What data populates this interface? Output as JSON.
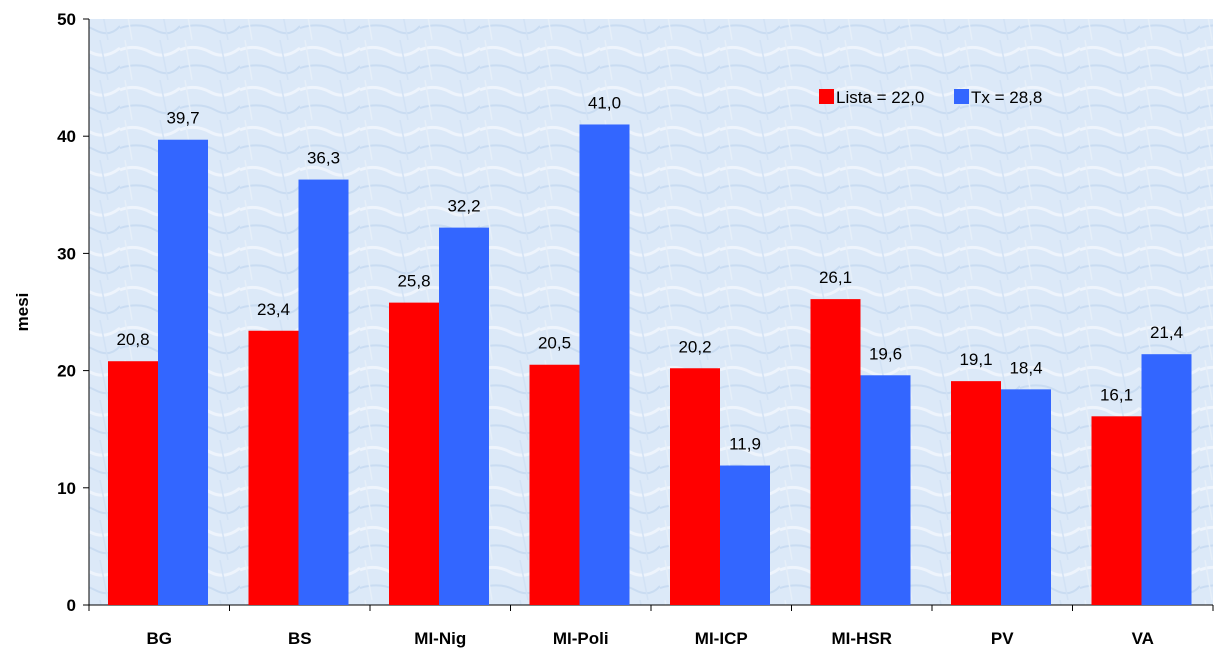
{
  "chart_data": {
    "type": "bar",
    "categories": [
      "BG",
      "BS",
      "MI-Nig",
      "MI-Poli",
      "MI-ICP",
      "MI-HSR",
      "PV",
      "VA"
    ],
    "series": [
      {
        "name": "Lista = 22,0",
        "color": "#ff0000",
        "values": [
          20.8,
          23.4,
          25.8,
          20.5,
          20.2,
          26.1,
          19.1,
          16.1
        ]
      },
      {
        "name": "Tx = 28,8",
        "color": "#3366ff",
        "values": [
          39.7,
          36.3,
          32.2,
          41.0,
          11.9,
          19.6,
          18.4,
          21.4
        ]
      }
    ],
    "value_labels": [
      [
        "20,8",
        "23,4",
        "25,8",
        "20,5",
        "20,2",
        "26,1",
        "19,1",
        "16,1"
      ],
      [
        "39,7",
        "36,3",
        "32,2",
        "41,0",
        "11,9",
        "19,6",
        "18,4",
        "21,4"
      ]
    ],
    "title": "",
    "xlabel": "",
    "ylabel": "mesi",
    "ylim": [
      0,
      50
    ],
    "yticks": [
      0,
      10,
      20,
      30,
      40,
      50
    ],
    "ytick_labels": [
      "0",
      "10",
      "20",
      "30",
      "40",
      "50"
    ],
    "grid": false,
    "legend_position": "top-right",
    "plot_background": "#dce9f8"
  }
}
